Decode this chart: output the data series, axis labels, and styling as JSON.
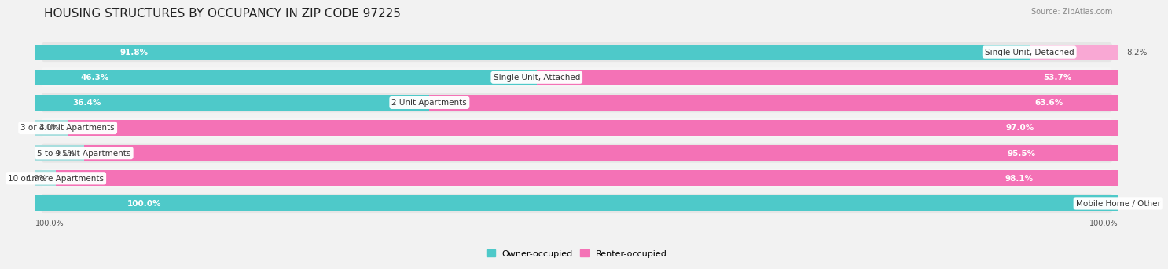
{
  "title": "HOUSING STRUCTURES BY OCCUPANCY IN ZIP CODE 97225",
  "source": "Source: ZipAtlas.com",
  "categories": [
    "Single Unit, Detached",
    "Single Unit, Attached",
    "2 Unit Apartments",
    "3 or 4 Unit Apartments",
    "5 to 9 Unit Apartments",
    "10 or more Apartments",
    "Mobile Home / Other"
  ],
  "owner_pct": [
    91.8,
    46.3,
    36.4,
    3.0,
    4.5,
    1.9,
    100.0
  ],
  "renter_pct": [
    8.2,
    53.7,
    63.6,
    97.0,
    95.5,
    98.1,
    0.0
  ],
  "owner_color": "#4ec9c9",
  "owner_color_light": "#a8dede",
  "renter_color": "#f472b6",
  "renter_color_light": "#f9a8d4",
  "bg_color": "#f2f2f2",
  "row_bg_even": "#e6e6e6",
  "row_bg_odd": "#f5f5f5",
  "title_fontsize": 11,
  "bar_label_fontsize": 7.5,
  "cat_label_fontsize": 7.5,
  "bar_height": 0.62,
  "x_left_label": "100.0%",
  "x_right_label": "100.0%"
}
